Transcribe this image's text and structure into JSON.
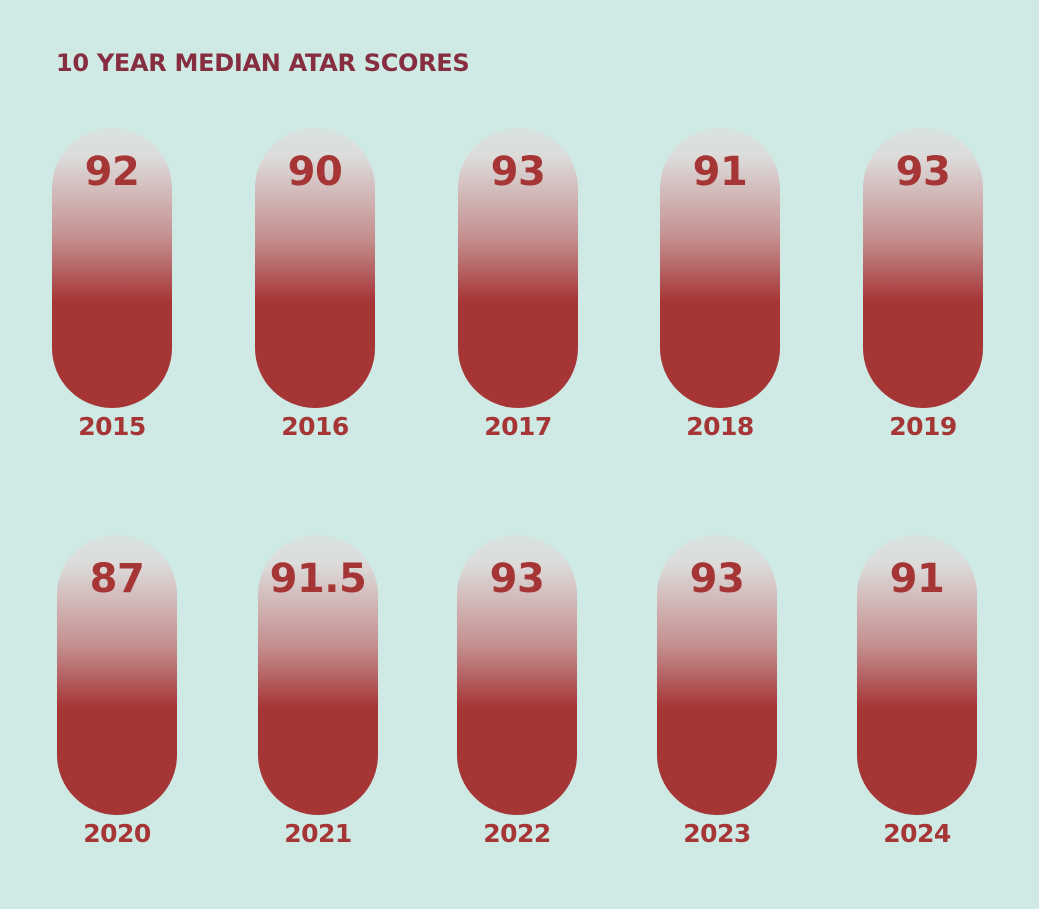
{
  "chart_data": {
    "type": "bar",
    "title": "10 YEAR MEDIAN ATAR SCORES",
    "categories": [
      "2015",
      "2016",
      "2017",
      "2018",
      "2019",
      "2020",
      "2021",
      "2022",
      "2023",
      "2024"
    ],
    "values": [
      92,
      90,
      93,
      91,
      93,
      87,
      91.5,
      93,
      93,
      91
    ],
    "value_labels": [
      "92",
      "90",
      "93",
      "91",
      "93",
      "87",
      "91.5",
      "93",
      "93",
      "91"
    ],
    "colors": {
      "background": "#cfeae5",
      "title": "#862e3f",
      "bar": "#a63536",
      "bar_top": "#dcdcdb",
      "label": "#a63536"
    }
  }
}
